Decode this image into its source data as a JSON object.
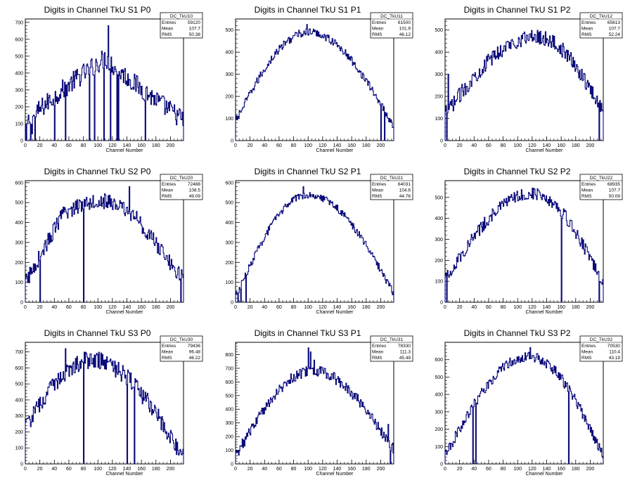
{
  "colors": {
    "histogram_line": "#0b0b7a",
    "frame": "#000000",
    "background": "#ffffff"
  },
  "chart_data": [
    {
      "type": "histogram",
      "title": "Digits in Channel TkU S1 P0",
      "xlabel": "Channel Number",
      "xlim": [
        0,
        218
      ],
      "ylim": [
        0,
        720
      ],
      "xticks": [
        0,
        20,
        40,
        60,
        80,
        100,
        120,
        140,
        160,
        180,
        200
      ],
      "yticks": [
        0,
        100,
        200,
        300,
        400,
        500,
        600,
        700
      ],
      "stats": {
        "name": "DC_TkU10",
        "entries": "59120",
        "mean": "107.7",
        "rms": "50.38"
      },
      "shape": "rising",
      "peak_channel": 110,
      "peak_level": 490,
      "start_level": 80,
      "end_level": 120,
      "noise": 60,
      "spikes": [
        [
          1,
          0
        ],
        [
          5,
          110
        ],
        [
          7,
          0
        ],
        [
          9,
          40
        ],
        [
          13,
          0
        ],
        [
          17,
          160
        ],
        [
          40,
          0
        ],
        [
          55,
          0
        ],
        [
          88,
          0
        ],
        [
          95,
          0
        ],
        [
          108,
          0
        ],
        [
          114,
          680
        ],
        [
          117,
          0
        ],
        [
          126,
          0
        ],
        [
          128,
          0
        ],
        [
          165,
          0
        ]
      ]
    },
    {
      "type": "histogram",
      "title": "Digits in Channel TkU S1 P1",
      "xlabel": "Channel Number",
      "xlim": [
        0,
        218
      ],
      "ylim": [
        0,
        550
      ],
      "xticks": [
        0,
        20,
        40,
        60,
        80,
        100,
        120,
        140,
        160,
        180,
        200
      ],
      "yticks": [
        0,
        100,
        200,
        300,
        400,
        500
      ],
      "stats": {
        "name": "DC_TkU11",
        "entries": "61500",
        "mean": "101.9",
        "rms": "46.12"
      },
      "shape": "bell",
      "peak_channel": 100,
      "peak_level": 490,
      "start_level": 90,
      "end_level": 60,
      "noise": 18,
      "spikes": [
        [
          98,
          525
        ],
        [
          200,
          0
        ],
        [
          205,
          0
        ]
      ]
    },
    {
      "type": "histogram",
      "title": "Digits in Channel TkU S1 P2",
      "xlabel": "Channel Number",
      "xlim": [
        0,
        218
      ],
      "ylim": [
        0,
        550
      ],
      "xticks": [
        0,
        20,
        40,
        60,
        80,
        100,
        120,
        140,
        160,
        180,
        200
      ],
      "yticks": [
        0,
        100,
        200,
        300,
        400,
        500
      ],
      "stats": {
        "name": "DC_TkU12",
        "entries": "65613",
        "mean": "107.7",
        "rms": "52.24"
      },
      "shape": "bell",
      "peak_channel": 125,
      "peak_level": 470,
      "start_level": 120,
      "end_level": 130,
      "noise": 35,
      "spikes": [
        [
          2,
          0
        ],
        [
          4,
          300
        ],
        [
          212,
          0
        ]
      ]
    },
    {
      "type": "histogram",
      "title": "Digits in Channel TkU S2 P0",
      "xlabel": "Channel Number",
      "xlim": [
        0,
        218
      ],
      "ylim": [
        0,
        610
      ],
      "xticks": [
        0,
        20,
        40,
        60,
        80,
        100,
        120,
        140,
        160,
        180,
        200
      ],
      "yticks": [
        0,
        100,
        200,
        300,
        400,
        500,
        600
      ],
      "stats": {
        "name": "DC_TkU20",
        "entries": "72488",
        "mean": "108.5",
        "rms": "49.09"
      },
      "shape": "plateau",
      "peak_channel": 110,
      "peak_level": 510,
      "start_level": 100,
      "end_level": 110,
      "noise": 40,
      "spikes": [
        [
          20,
          0
        ],
        [
          80,
          0
        ],
        [
          143,
          580
        ],
        [
          210,
          170
        ],
        [
          214,
          0
        ]
      ]
    },
    {
      "type": "histogram",
      "title": "Digits in Channel TkU S2 P1",
      "xlabel": "Channel Number",
      "xlim": [
        0,
        218
      ],
      "ylim": [
        0,
        610
      ],
      "xticks": [
        0,
        20,
        40,
        60,
        80,
        100,
        120,
        140,
        160,
        180,
        200
      ],
      "yticks": [
        0,
        100,
        200,
        300,
        400,
        500,
        600
      ],
      "stats": {
        "name": "DC_TkU21",
        "entries": "64031",
        "mean": "104.6",
        "rms": "44.76"
      },
      "shape": "bell",
      "peak_channel": 100,
      "peak_level": 540,
      "start_level": 30,
      "end_level": 40,
      "noise": 18,
      "spikes": [
        [
          3,
          0
        ],
        [
          7,
          0
        ],
        [
          10,
          110
        ],
        [
          14,
          0
        ],
        [
          93,
          580
        ]
      ]
    },
    {
      "type": "histogram",
      "title": "Digits in Channel TkU S2 P2",
      "xlabel": "Channel Number",
      "xlim": [
        0,
        218
      ],
      "ylim": [
        0,
        580
      ],
      "xticks": [
        0,
        20,
        40,
        60,
        80,
        100,
        120,
        140,
        160,
        180,
        200
      ],
      "yticks": [
        0,
        100,
        200,
        300,
        400,
        500
      ],
      "stats": {
        "name": "DC_TkU22",
        "entries": "68935",
        "mean": "107.7",
        "rms": "50.09"
      },
      "shape": "bell",
      "peak_channel": 120,
      "peak_level": 520,
      "start_level": 110,
      "end_level": 80,
      "noise": 30,
      "spikes": [
        [
          2,
          0
        ],
        [
          160,
          0
        ],
        [
          212,
          0
        ]
      ]
    },
    {
      "type": "histogram",
      "title": "Digits in Channel TkU S3 P0",
      "xlabel": "Channel Number",
      "xlim": [
        0,
        218
      ],
      "ylim": [
        0,
        760
      ],
      "xticks": [
        0,
        20,
        40,
        60,
        80,
        100,
        120,
        140,
        160,
        180,
        200
      ],
      "yticks": [
        0,
        100,
        200,
        300,
        400,
        500,
        600,
        700
      ],
      "stats": {
        "name": "DC_TkU30",
        "entries": "79436",
        "mean": "96.48",
        "rms": "46.22"
      },
      "shape": "bell",
      "peak_channel": 90,
      "peak_level": 650,
      "start_level": 230,
      "end_level": 30,
      "noise": 55,
      "spikes": [
        [
          55,
          720
        ],
        [
          80,
          0
        ],
        [
          140,
          0
        ],
        [
          150,
          0
        ]
      ]
    },
    {
      "type": "histogram",
      "title": "Digits in Channel TkU S3 P1",
      "xlabel": "Channel Number",
      "xlim": [
        0,
        218
      ],
      "ylim": [
        0,
        890
      ],
      "xticks": [
        0,
        20,
        40,
        60,
        80,
        100,
        120,
        140,
        160,
        180,
        200
      ],
      "yticks": [
        0,
        100,
        200,
        300,
        400,
        500,
        600,
        700,
        800
      ],
      "stats": {
        "name": "DC_TkU31",
        "entries": "78330",
        "mean": "111.3",
        "rms": "45.49"
      },
      "shape": "bell",
      "peak_channel": 105,
      "peak_level": 680,
      "start_level": 60,
      "end_level": 100,
      "noise": 40,
      "spikes": [
        [
          100,
          850
        ],
        [
          103,
          820
        ],
        [
          108,
          760
        ],
        [
          210,
          290
        ],
        [
          213,
          0
        ]
      ]
    },
    {
      "type": "histogram",
      "title": "Digits in Channel TkU S3 P2",
      "xlabel": "Channel Number",
      "xlim": [
        0,
        218
      ],
      "ylim": [
        0,
        700
      ],
      "xticks": [
        0,
        20,
        40,
        60,
        80,
        100,
        120,
        140,
        160,
        180,
        200
      ],
      "yticks": [
        0,
        100,
        200,
        300,
        400,
        500,
        600
      ],
      "stats": {
        "name": "DC_TkU32",
        "entries": "70530",
        "mean": "110.4",
        "rms": "43.19"
      },
      "shape": "bell",
      "peak_channel": 115,
      "peak_level": 620,
      "start_level": 50,
      "end_level": 40,
      "noise": 30,
      "spikes": [
        [
          38,
          0
        ],
        [
          42,
          0
        ],
        [
          117,
          670
        ],
        [
          170,
          0
        ]
      ]
    }
  ],
  "stats_labels": {
    "entries": "Entries",
    "mean": "Mean",
    "rms": "RMS"
  }
}
